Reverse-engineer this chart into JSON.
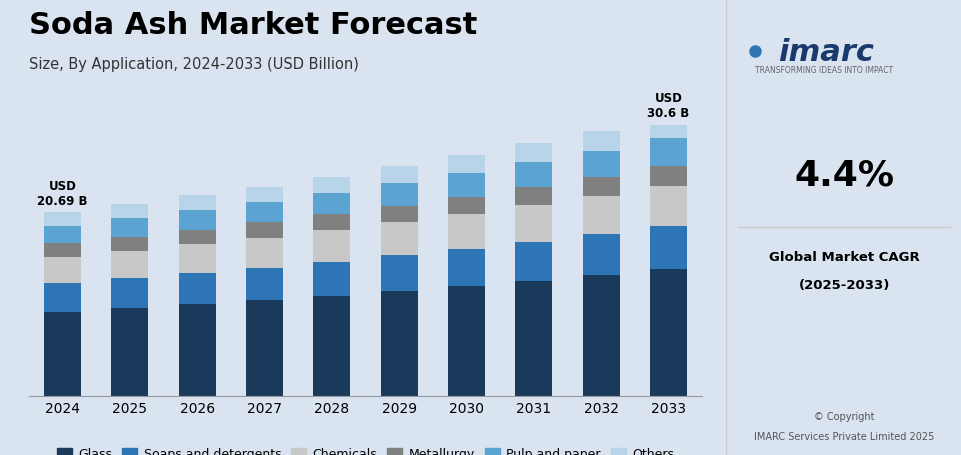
{
  "title": "Soda Ash Market Forecast",
  "subtitle": "Size, By Application, 2024-2033 (USD Billion)",
  "years": [
    2024,
    2025,
    2026,
    2027,
    2028,
    2029,
    2030,
    2031,
    2032,
    2033
  ],
  "segments": [
    "Glass",
    "Soaps and detergents",
    "Chemicals",
    "Metallurgy",
    "Pulp and paper",
    "Others"
  ],
  "colors": [
    "#1a3a5c",
    "#2e75b6",
    "#c8c8c8",
    "#808080",
    "#5ba3d0",
    "#b8d4e8"
  ],
  "data": {
    "Glass": [
      9.5,
      9.9,
      10.35,
      10.8,
      11.3,
      11.85,
      12.4,
      13.0,
      13.6,
      14.3
    ],
    "Soaps and detergents": [
      3.2,
      3.35,
      3.5,
      3.65,
      3.82,
      4.0,
      4.2,
      4.4,
      4.6,
      4.85
    ],
    "Chemicals": [
      3.0,
      3.12,
      3.25,
      3.4,
      3.55,
      3.72,
      3.9,
      4.1,
      4.3,
      4.5
    ],
    "Metallurgy": [
      1.5,
      1.57,
      1.65,
      1.72,
      1.8,
      1.88,
      1.97,
      2.07,
      2.17,
      2.28
    ],
    "Pulp and paper": [
      2.0,
      2.1,
      2.2,
      2.3,
      2.42,
      2.55,
      2.68,
      2.82,
      2.97,
      3.12
    ],
    "Others": [
      1.49,
      1.56,
      1.65,
      1.73,
      1.81,
      1.9,
      2.0,
      2.1,
      2.21,
      1.55
    ]
  },
  "annotation_2024": "USD\n20.69 B",
  "annotation_2033": "USD\n30.6 B",
  "ylim": [
    0,
    35
  ],
  "bg_color": "#d9e4f0",
  "plot_bg_color": "#d9e4f0",
  "right_bg_color": "#ffffff",
  "title_fontsize": 22,
  "subtitle_fontsize": 10.5,
  "legend_fontsize": 9,
  "tick_fontsize": 10
}
